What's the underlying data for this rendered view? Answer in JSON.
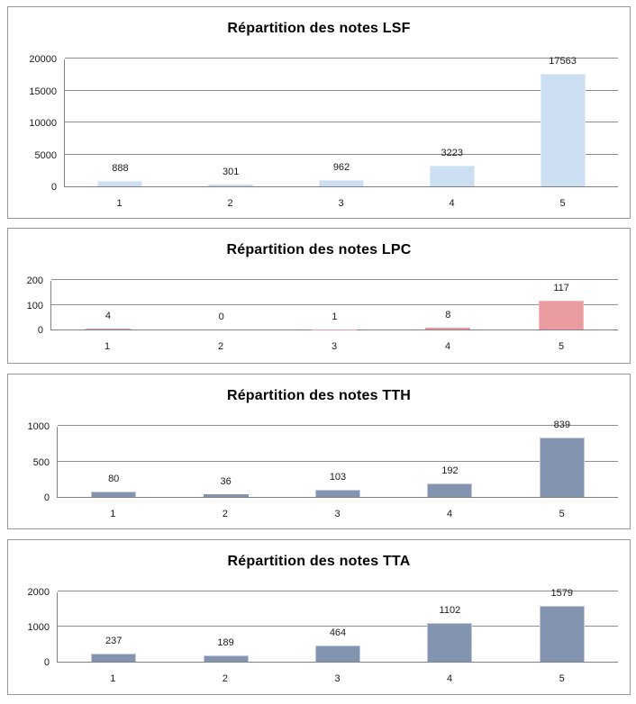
{
  "chart_data": [
    {
      "type": "bar",
      "title": "Répartition des notes LSF",
      "categories": [
        "1",
        "2",
        "3",
        "4",
        "5"
      ],
      "values": [
        888,
        301,
        962,
        3223,
        17563
      ],
      "data_labels": [
        "888",
        "301",
        "962",
        "3223",
        "17563"
      ],
      "yticks": [
        0,
        5000,
        10000,
        15000,
        20000
      ],
      "ylim": [
        0,
        20000
      ],
      "xlabel": "",
      "ylabel": "",
      "grid": true,
      "legend": "none",
      "bar_color": "#cbdef2",
      "bar_border_color": "#e2edf9"
    },
    {
      "type": "bar",
      "title": "Répartition des notes LPC",
      "categories": [
        "1",
        "2",
        "3",
        "4",
        "5"
      ],
      "values": [
        4,
        0,
        1,
        8,
        117
      ],
      "data_labels": [
        "4",
        "0",
        "1",
        "8",
        "117"
      ],
      "yticks": [
        0,
        100,
        200
      ],
      "ylim": [
        0,
        200
      ],
      "xlabel": "",
      "ylabel": "",
      "grid": true,
      "legend": "none",
      "bar_color": "#ea9ca0",
      "bar_border_color": "#f2b9bc"
    },
    {
      "type": "bar",
      "title": "Répartition des notes TTH",
      "categories": [
        "1",
        "2",
        "3",
        "4",
        "5"
      ],
      "values": [
        80,
        36,
        103,
        192,
        839
      ],
      "data_labels": [
        "80",
        "36",
        "103",
        "192",
        "839"
      ],
      "yticks": [
        0,
        500,
        1000
      ],
      "ylim": [
        0,
        1000
      ],
      "xlabel": "",
      "ylabel": "",
      "grid": true,
      "legend": "none",
      "bar_color": "#8394b1",
      "bar_border_color": "#c3cbdc"
    },
    {
      "type": "bar",
      "title": "Répartition des notes TTA",
      "categories": [
        "1",
        "2",
        "3",
        "4",
        "5"
      ],
      "values": [
        237,
        189,
        464,
        1102,
        1579
      ],
      "data_labels": [
        "237",
        "189",
        "464",
        "1102",
        "1579"
      ],
      "yticks": [
        0,
        1000,
        2000
      ],
      "ylim": [
        0,
        2000
      ],
      "xlabel": "",
      "ylabel": "",
      "grid": true,
      "legend": "none",
      "bar_color": "#8394b1",
      "bar_border_color": "#c3cbdc"
    }
  ]
}
